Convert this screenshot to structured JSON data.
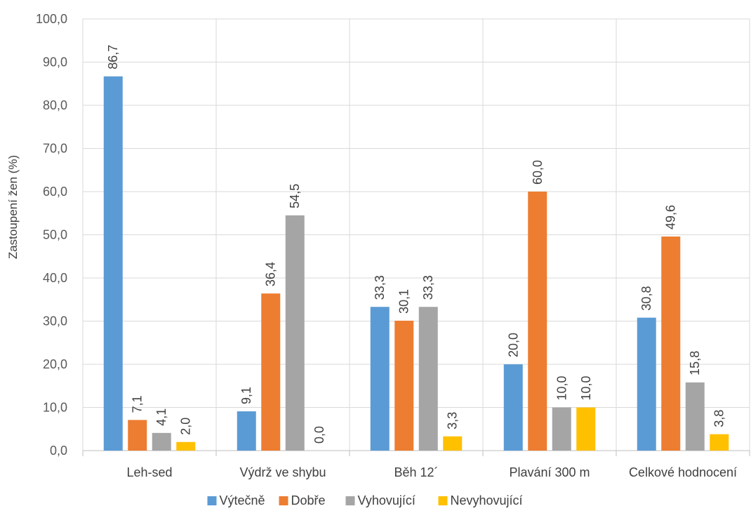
{
  "chart_data": {
    "type": "bar",
    "title": "",
    "xlabel": "",
    "ylabel": "Zastoupení žen (%)",
    "ylim": [
      0,
      100
    ],
    "yticks": [
      "0,0",
      "10,0",
      "20,0",
      "30,0",
      "40,0",
      "50,0",
      "60,0",
      "70,0",
      "80,0",
      "90,0",
      "100,0"
    ],
    "grid": true,
    "legend_position": "bottom",
    "categories": [
      "Leh-sed",
      "Výdrž ve shybu",
      "Běh 12´",
      "Plavání 300 m",
      "Celkové hodnocení"
    ],
    "series": [
      {
        "name": "Výtečně",
        "color": "#5B9BD5",
        "values": [
          86.7,
          9.1,
          33.3,
          20.0,
          30.8
        ],
        "labels": [
          "86,7",
          "9,1",
          "33,3",
          "20,0",
          "30,8"
        ]
      },
      {
        "name": "Dobře",
        "color": "#ED7D31",
        "values": [
          7.1,
          36.4,
          30.1,
          60.0,
          49.6
        ],
        "labels": [
          "7,1",
          "36,4",
          "30,1",
          "60,0",
          "49,6"
        ]
      },
      {
        "name": "Vyhovující",
        "color": "#A5A5A5",
        "values": [
          4.1,
          54.5,
          33.3,
          10.0,
          15.8
        ],
        "labels": [
          "4,1",
          "54,5",
          "33,3",
          "10,0",
          "15,8"
        ]
      },
      {
        "name": "Nevyhovující",
        "color": "#FFC000",
        "values": [
          2.0,
          0.0,
          3.3,
          10.0,
          3.8
        ],
        "labels": [
          "2,0",
          "0,0",
          "3,3",
          "10,0",
          "3,8"
        ]
      }
    ]
  }
}
